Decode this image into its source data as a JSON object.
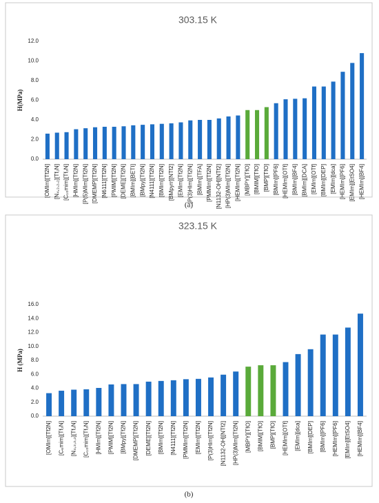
{
  "chart_data": [
    {
      "type": "bar",
      "title": "303.15 K",
      "y_label": "H(MPa)",
      "caption": "(a)",
      "categories": [
        "[OMIm][Tf2N]",
        "[N₄,₂,₂,₂][Tf₂N]",
        "[C₁₀mim][Tf₂N]",
        "[HMIm][Tf2N]",
        "[P(5)MIm][Tf2N]",
        "[DMEMP][Tf2N]",
        "[N6111][Tf2N]",
        "[PMIM][Tf2N]",
        "[DEME][Tf2N]",
        "[BMIm][BETI]",
        "[BMpy][Tf2N]",
        "[N4111][Tf2N]",
        "[BMIm][Tf2N]",
        "[BMpyrr][NTf2]",
        "[EMIm][Tf2N]",
        "[P(3)HIm][Tf2N]",
        "[BMIm][TFA]",
        "[PMMIm][Tf2N]",
        "[N1132-OH][NTf2]",
        "[HP(3)MIm][Tf2N]",
        "[HEMIm][Tf2N]",
        "[MBPY][TfO]",
        "[BMIM][TfO]",
        "[BMP][TfO]",
        "[BMIm][PF6]",
        "[HEMIm][OTf]",
        "[BMIm][BF4]",
        "[BMIm][DCA]",
        "[EMIm][OTf]",
        "[BMIm][DEP]",
        "[EMIm][dca]",
        "[HEMIm][PF6]",
        "[EMIm][EtSO4]",
        "[HEMIm][BF4]"
      ],
      "values": [
        2.6,
        2.7,
        2.75,
        3.05,
        3.15,
        3.25,
        3.3,
        3.3,
        3.35,
        3.45,
        3.5,
        3.55,
        3.6,
        3.65,
        3.75,
        3.95,
        4.0,
        4.0,
        4.15,
        4.35,
        4.45,
        5.0,
        5.0,
        5.3,
        5.7,
        6.1,
        6.15,
        6.2,
        7.4,
        7.4,
        7.9,
        8.9,
        9.8,
        10.8
      ],
      "colors": [
        "#1f6fc5",
        "#1f6fc5",
        "#1f6fc5",
        "#1f6fc5",
        "#1f6fc5",
        "#1f6fc5",
        "#1f6fc5",
        "#1f6fc5",
        "#1f6fc5",
        "#1f6fc5",
        "#1f6fc5",
        "#1f6fc5",
        "#1f6fc5",
        "#1f6fc5",
        "#1f6fc5",
        "#1f6fc5",
        "#1f6fc5",
        "#1f6fc5",
        "#1f6fc5",
        "#1f6fc5",
        "#1f6fc5",
        "#5aaa3a",
        "#5aaa3a",
        "#5aaa3a",
        "#1f6fc5",
        "#1f6fc5",
        "#1f6fc5",
        "#1f6fc5",
        "#1f6fc5",
        "#1f6fc5",
        "#1f6fc5",
        "#1f6fc5",
        "#1f6fc5",
        "#1f6fc5"
      ],
      "ylim": [
        0,
        12
      ],
      "yticks": [
        {
          "value": 0,
          "label": "0.0"
        },
        {
          "value": 2,
          "label": "2.0"
        },
        {
          "value": 4,
          "label": "4.0"
        },
        {
          "value": 6,
          "label": "6.0"
        },
        {
          "value": 8,
          "label": "8.0"
        },
        {
          "value": 10,
          "label": "10.0"
        },
        {
          "value": 12,
          "label": "12.0"
        }
      ],
      "grid": false
    },
    {
      "type": "bar",
      "title": "323.15 K",
      "y_label": "H (MPa)",
      "caption": "(b)",
      "categories": [
        "[OMIm][Tf2N]",
        "[C₆mim][Tf₂N]",
        "[N₄,₂,₂,₂][Tf₂N]",
        "[C₁₀mim][Tf₂N]",
        "[HMIm][Tf2N]",
        "[PMIM][Tf2N]",
        "[BMpy][Tf2N]",
        "[DMEMP][Tf2N]",
        "[DEME][Tf2N]",
        "[BMIm][Tf2N]",
        "[N4111][Tf2N]",
        "[PMMIm][Tf2N]",
        "[EMIm][Tf2N]",
        "[P(3)HIm][Tf2N]",
        "[N1132-OH][NTf2]",
        "[HP(3)MIm][Tf2N]",
        "[MBPY][TfO]",
        "[BMIM][TfO]",
        "[BMP][TfO]",
        "[HEMIm][OTf]",
        "[EMIm][dca]",
        "[BMIm][DEP]",
        "[BMIm][PF6]",
        "[HEMIm][PF6]",
        "[EMIm][EtSO4]",
        "[HEMIm][BF4]"
      ],
      "values": [
        3.3,
        3.65,
        3.8,
        3.85,
        4.05,
        4.55,
        4.6,
        4.6,
        4.95,
        5.05,
        5.15,
        5.3,
        5.35,
        5.55,
        5.95,
        6.4,
        7.1,
        7.3,
        7.3,
        7.75,
        8.9,
        9.6,
        11.7,
        11.7,
        12.7,
        14.7
      ],
      "colors": [
        "#1f6fc5",
        "#1f6fc5",
        "#1f6fc5",
        "#1f6fc5",
        "#1f6fc5",
        "#1f6fc5",
        "#1f6fc5",
        "#1f6fc5",
        "#1f6fc5",
        "#1f6fc5",
        "#1f6fc5",
        "#1f6fc5",
        "#1f6fc5",
        "#1f6fc5",
        "#1f6fc5",
        "#1f6fc5",
        "#5aaa3a",
        "#5aaa3a",
        "#5aaa3a",
        "#1f6fc5",
        "#1f6fc5",
        "#1f6fc5",
        "#1f6fc5",
        "#1f6fc5",
        "#1f6fc5",
        "#1f6fc5"
      ],
      "ylim": [
        0,
        16
      ],
      "yticks": [
        {
          "value": 0,
          "label": "0.0"
        },
        {
          "value": 2,
          "label": "2.0"
        },
        {
          "value": 4,
          "label": "4.0"
        },
        {
          "value": 6,
          "label": "6.0"
        },
        {
          "value": 8,
          "label": "8.0"
        },
        {
          "value": 10,
          "label": "10.0"
        },
        {
          "value": 12,
          "label": "12.0"
        },
        {
          "value": 14,
          "label": "14.0"
        },
        {
          "value": 16,
          "label": "16.0"
        }
      ],
      "grid": false
    }
  ]
}
